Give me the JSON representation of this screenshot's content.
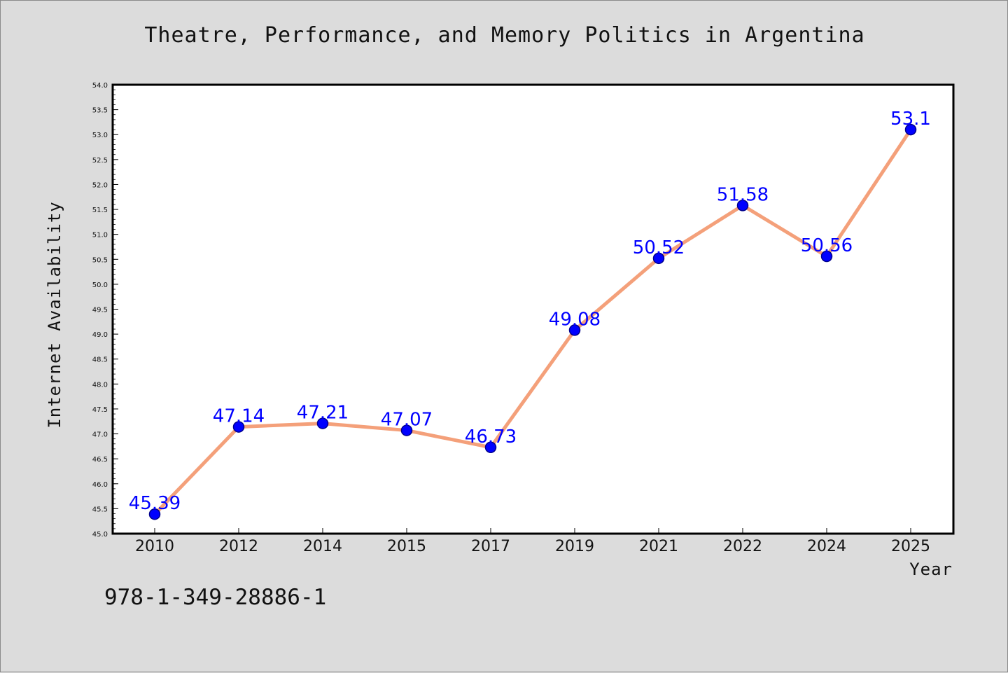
{
  "isbn": "978-1-349-28886-1",
  "colors": {
    "background": "#dcdcdc",
    "plot_area": "#ffffff",
    "line": "#f4a07a",
    "markers": "#0000ff",
    "data_labels": "#0000ff"
  },
  "chart_data": {
    "type": "line",
    "title": "Theatre, Performance, and Memory Politics in Argentina",
    "xlabel": "Year",
    "ylabel": "Internet Availability",
    "categories": [
      "2010",
      "2012",
      "2014",
      "2015",
      "2017",
      "2019",
      "2021",
      "2022",
      "2024",
      "2025"
    ],
    "series": [
      {
        "values": [
          45.39,
          47.14,
          47.21,
          47.07,
          46.73,
          49.08,
          50.52,
          51.58,
          50.56,
          53.1
        ],
        "labels": [
          "45.39",
          "47.14",
          "47.21",
          "47.07",
          "46.73",
          "49.08",
          "50.52",
          "51.58",
          "50.56",
          "53.1"
        ]
      }
    ],
    "ylim": [
      45.0,
      54.0
    ],
    "yticks": [
      "45.0",
      "45.5",
      "46.0",
      "46.5",
      "47.0",
      "47.5",
      "48.0",
      "48.5",
      "49.0",
      "49.5",
      "50.0",
      "50.5",
      "51.0",
      "51.5",
      "52.0",
      "52.5",
      "53.0",
      "53.5",
      "54.0"
    ],
    "grid": false,
    "legend": "none"
  }
}
